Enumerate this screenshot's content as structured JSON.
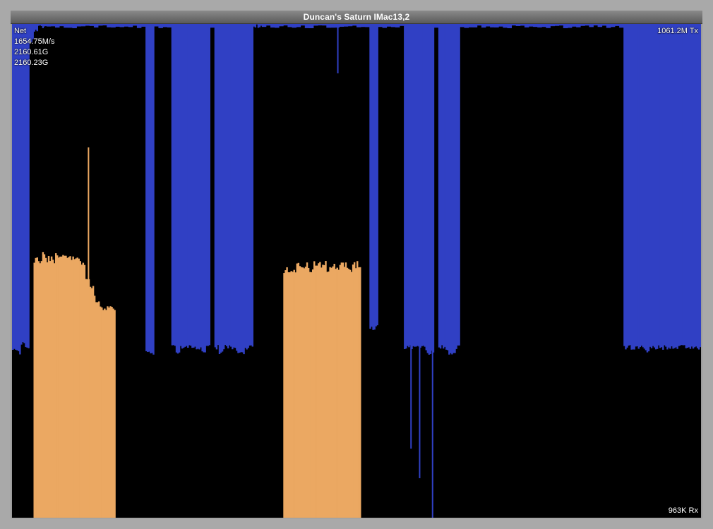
{
  "window": {
    "title": "Duncan's Saturn IMac13,2"
  },
  "net": {
    "label": "Net",
    "rate": "1654.75M/s",
    "total_a": "2160.61G",
    "total_b": "2160.23G",
    "tx_label": "1061.2M Tx",
    "rx_label": "963K Rx"
  },
  "colors": {
    "background": "#000000",
    "tx_series": "#3040c4",
    "rx_series": "#eba862",
    "frame": "#9c9c9c"
  },
  "chart_data": {
    "type": "area",
    "series": [
      {
        "name": "Tx",
        "fraction_of_scale": [
          0.66,
          0.67,
          0.65,
          0.66,
          0.04,
          0.02,
          0.01,
          0.01,
          0.0,
          0.0,
          0.0,
          0.0,
          0.0,
          0.0,
          0.0,
          0.0,
          0.0,
          0.0,
          0.0,
          0.0,
          0.0,
          0.0,
          0.0,
          0.0,
          0.0,
          0.0,
          0.0,
          0.0,
          0.0,
          0.0,
          0.0,
          0.67,
          0.67,
          0.0,
          0.0,
          0.0,
          0.0,
          0.66,
          0.67,
          0.66,
          0.66,
          0.66,
          0.66,
          0.66,
          0.67,
          0.66,
          0.0,
          0.66,
          0.67,
          0.66,
          0.66,
          0.66,
          0.67,
          0.67,
          0.66,
          0.66,
          0.01,
          0.01,
          0.0,
          0.0,
          0.0,
          0.0,
          0.0,
          0.0,
          0.0,
          0.0,
          0.0,
          0.0,
          0.0,
          0.0,
          0.0,
          0.0,
          0.0,
          0.0,
          0.0,
          0.0,
          0.0,
          0.0,
          0.0,
          0.0,
          0.0,
          0.0,
          0.0,
          0.62,
          0.62,
          0.0,
          0.0,
          0.0,
          0.0,
          0.0,
          0.0,
          0.66,
          0.66,
          0.66,
          0.66,
          0.66,
          0.67,
          0.67,
          0.0,
          0.66,
          0.66,
          0.67,
          0.67,
          0.66,
          0.0,
          0.0,
          0.0,
          0.0,
          0.0,
          0.0,
          0.0,
          0.0,
          0.0,
          0.0,
          0.0,
          0.0,
          0.0,
          0.0,
          0.0,
          0.0,
          0.0,
          0.0,
          0.0,
          0.0,
          0.0,
          0.0,
          0.0,
          0.0,
          0.0,
          0.0,
          0.0,
          0.0,
          0.0,
          0.0,
          0.0,
          0.0,
          0.0,
          0.0,
          0.0,
          0.0,
          0.0,
          0.0,
          0.66,
          0.66,
          0.66,
          0.66,
          0.66,
          0.67,
          0.66,
          0.66,
          0.66,
          0.66,
          0.66,
          0.66,
          0.66,
          0.66,
          0.66,
          0.66,
          0.66,
          0.66
        ]
      },
      {
        "name": "Rx",
        "fraction_of_scale": [
          0.0,
          0.0,
          0.0,
          0.0,
          0.0,
          0.53,
          0.53,
          0.54,
          0.53,
          0.53,
          0.54,
          0.54,
          0.54,
          0.53,
          0.53,
          0.53,
          0.52,
          0.49,
          0.47,
          0.45,
          0.44,
          0.43,
          0.44,
          0.43,
          0.0,
          0.0,
          0.0,
          0.0,
          0.0,
          0.0,
          0.0,
          0.0,
          0.0,
          0.0,
          0.0,
          0.0,
          0.0,
          0.0,
          0.0,
          0.0,
          0.0,
          0.0,
          0.0,
          0.0,
          0.0,
          0.0,
          0.0,
          0.0,
          0.0,
          0.0,
          0.0,
          0.0,
          0.0,
          0.0,
          0.0,
          0.0,
          0.0,
          0.0,
          0.0,
          0.0,
          0.0,
          0.0,
          0.0,
          0.51,
          0.51,
          0.51,
          0.52,
          0.52,
          0.52,
          0.51,
          0.52,
          0.52,
          0.52,
          0.51,
          0.52,
          0.51,
          0.52,
          0.52,
          0.51,
          0.52,
          0.52,
          0.0,
          0.0,
          0.0,
          0.0,
          0.0,
          0.0,
          0.0,
          0.0,
          0.0,
          0.0,
          0.0,
          0.0,
          0.0,
          0.0,
          0.0,
          0.0,
          0.0,
          0.0,
          0.0,
          0.0,
          0.0,
          0.0,
          0.0,
          0.0,
          0.0,
          0.0,
          0.0,
          0.0,
          0.0,
          0.0,
          0.0,
          0.0,
          0.0,
          0.0,
          0.0,
          0.0,
          0.0,
          0.0,
          0.0,
          0.0,
          0.0,
          0.0,
          0.0,
          0.0,
          0.0,
          0.0,
          0.0,
          0.0,
          0.0,
          0.0,
          0.0,
          0.0,
          0.0,
          0.0,
          0.0,
          0.0,
          0.0,
          0.0,
          0.0,
          0.0,
          0.0,
          0.0,
          0.0,
          0.0,
          0.0,
          0.0,
          0.0,
          0.0,
          0.0,
          0.0,
          0.0,
          0.0,
          0.0,
          0.0,
          0.0,
          0.0,
          0.0,
          0.0,
          0.0
        ]
      }
    ],
    "gaps": [
      {
        "index": 4,
        "to": 30
      },
      {
        "index": 33,
        "to": 36
      },
      {
        "index": 56,
        "to": 82
      },
      {
        "index": 85,
        "to": 90
      },
      {
        "index": 104,
        "to": 141
      }
    ],
    "rx_spike": {
      "index": 17,
      "fraction_of_scale": 0.75
    },
    "tx_drop_lines": [
      {
        "index": 92,
        "fraction_of_scale": 0.14
      },
      {
        "index": 94,
        "fraction_of_scale": 0.08
      },
      {
        "index": 97,
        "fraction_of_scale": 0.0
      },
      {
        "index": 75,
        "fraction_of_scale": 0.9
      }
    ],
    "grid": false,
    "legend": "none"
  }
}
